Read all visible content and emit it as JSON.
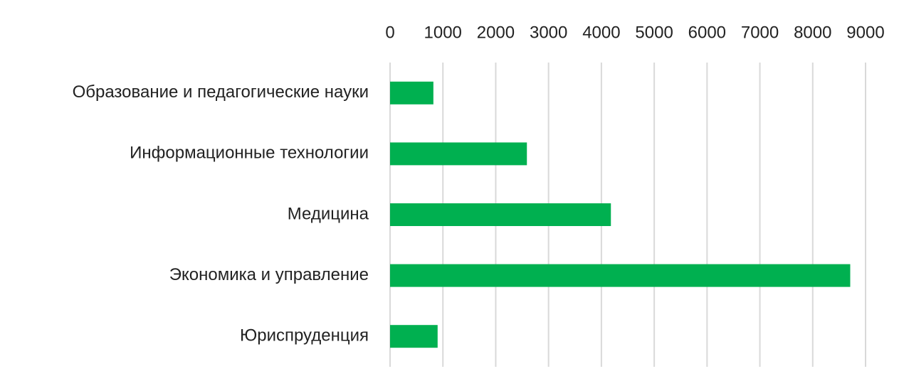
{
  "chart_data": {
    "type": "bar",
    "orientation": "horizontal",
    "categories": [
      "Образование и педагогические науки",
      "Информационные технологии",
      "Медицина",
      "Экономика и управление",
      "Юриспруденция"
    ],
    "values": [
      820,
      2590,
      4180,
      8710,
      900
    ],
    "color": "#00b050",
    "xlim": [
      0,
      9000
    ],
    "xticks": [
      0,
      1000,
      2000,
      3000,
      4000,
      5000,
      6000,
      7000,
      8000,
      9000
    ],
    "grid": true
  }
}
